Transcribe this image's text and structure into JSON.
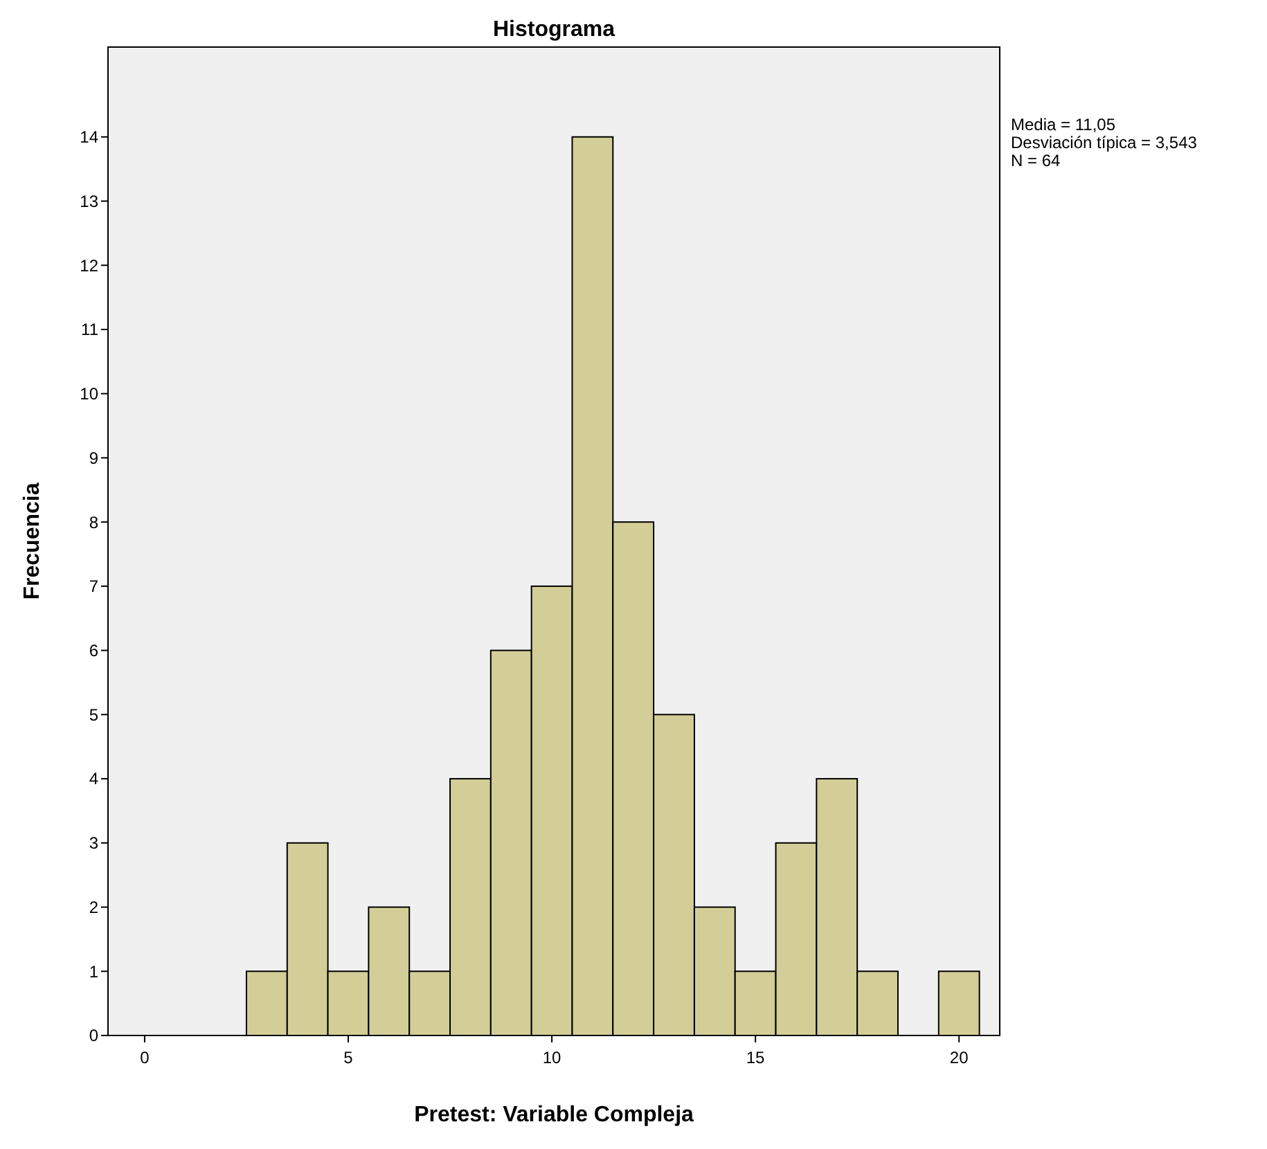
{
  "chart_data": {
    "type": "histogram",
    "title": "Histograma",
    "xlabel": "Pretest: Variable Compleja",
    "ylabel": "Frecuencia",
    "bins": [
      2.5,
      3.5,
      4.5,
      5.5,
      6.5,
      7.5,
      8.5,
      9.5,
      10.5,
      11.5,
      12.5,
      13.5,
      14.5,
      15.5,
      16.5,
      17.5,
      18.5,
      19.5,
      20.5
    ],
    "values": [
      1,
      3,
      1,
      2,
      1,
      4,
      6,
      7,
      14,
      8,
      5,
      2,
      1,
      3,
      4,
      1,
      0,
      1
    ],
    "color": "#d3ce97",
    "xlim": [
      -0.9,
      21
    ],
    "xticks": [
      0,
      5,
      10,
      15,
      20
    ],
    "ylim": [
      0,
      15.4
    ],
    "yticks": [
      0,
      1,
      2,
      3,
      4,
      5,
      6,
      7,
      8,
      9,
      10,
      11,
      12,
      13,
      14
    ],
    "grid": false,
    "annotations": [
      "Media = 11,05",
      "Desviación típica = 3,543",
      "N = 64"
    ]
  }
}
